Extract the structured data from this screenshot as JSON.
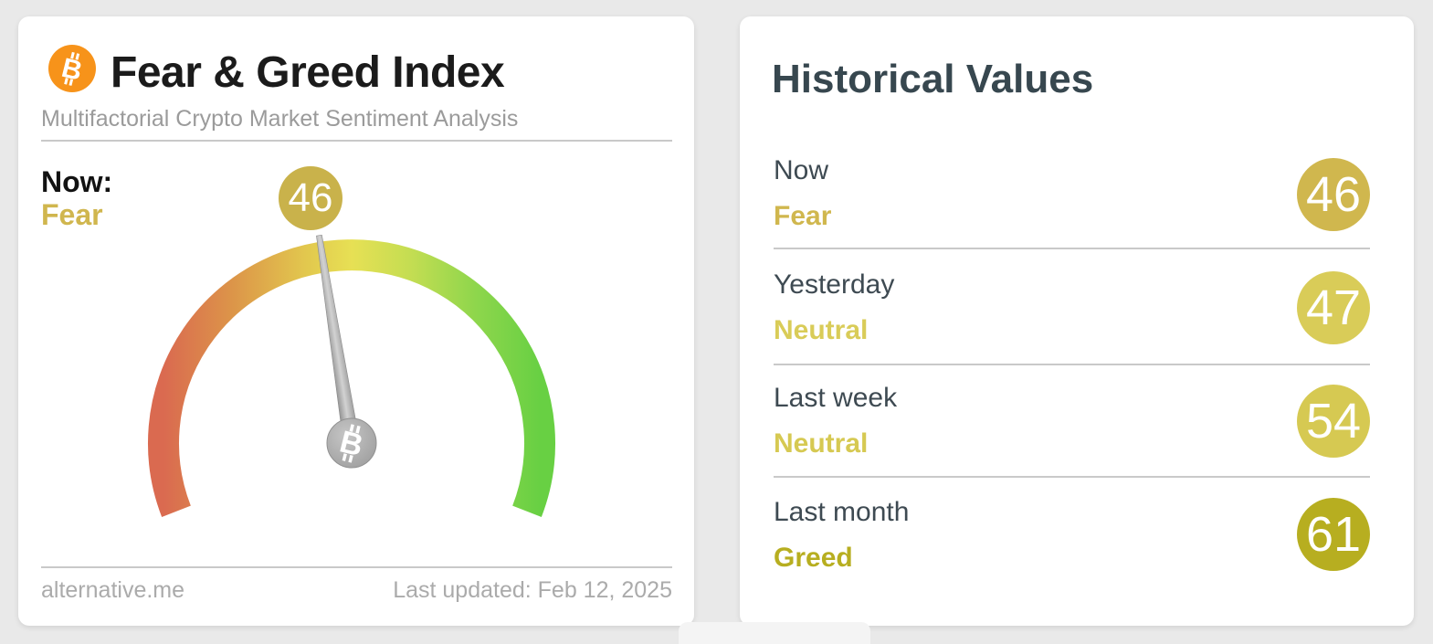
{
  "colors": {
    "page_bg": "#e9e9e9",
    "bitcoin_orange": "#f7931a",
    "fear_gold": "#d0b64e",
    "neutral_yellow": "#d9cc58",
    "greed_olive": "#b7ae20"
  },
  "fear_greed_card": {
    "title": "Fear & Greed Index",
    "subtitle": "Multifactorial Crypto Market Sentiment Analysis",
    "now_label": "Now:",
    "now_sentiment": "Fear",
    "now_sentiment_color": "#d0b64e",
    "gauge_value": 46,
    "gauge_badge_color": "#c9b24b",
    "footer_source": "alternative.me",
    "footer_updated": "Last updated: Feb 12, 2025"
  },
  "historical_card": {
    "title": "Historical Values",
    "rows": [
      {
        "label": "Now",
        "sentiment": "Fear",
        "value": 46,
        "color": "#d0b74e"
      },
      {
        "label": "Yesterday",
        "sentiment": "Neutral",
        "value": 47,
        "color": "#d9cc58"
      },
      {
        "label": "Last week",
        "sentiment": "Neutral",
        "value": 54,
        "color": "#d6c952"
      },
      {
        "label": "Last month",
        "sentiment": "Greed",
        "value": 61,
        "color": "#b7ae20"
      }
    ]
  },
  "chart_data": {
    "type": "gauge",
    "title": "Fear & Greed Index",
    "value": 46,
    "value_label": "Fear",
    "min": 0,
    "max": 100,
    "arc_start_deg": 201.3,
    "arc_sweep_deg": 222.6,
    "scale_colors_left_to_right": [
      "#da6a50",
      "#dc9449",
      "#e7e054",
      "#8ed64c",
      "#68d043"
    ],
    "historical": {
      "categories": [
        "Now",
        "Yesterday",
        "Last week",
        "Last month"
      ],
      "values": [
        46,
        47,
        54,
        61
      ],
      "sentiments": [
        "Fear",
        "Neutral",
        "Neutral",
        "Greed"
      ]
    }
  }
}
